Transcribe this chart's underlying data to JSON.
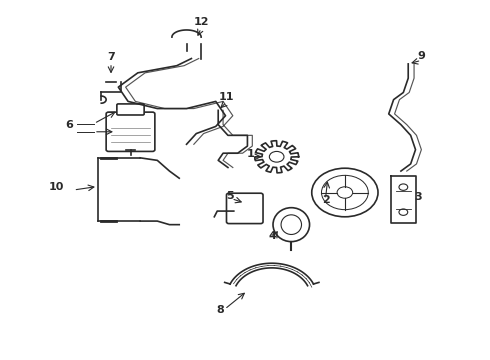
{
  "bg_color": "#ffffff",
  "line_color": "#2a2a2a",
  "label_color": "#000000",
  "lw": 1.2
}
